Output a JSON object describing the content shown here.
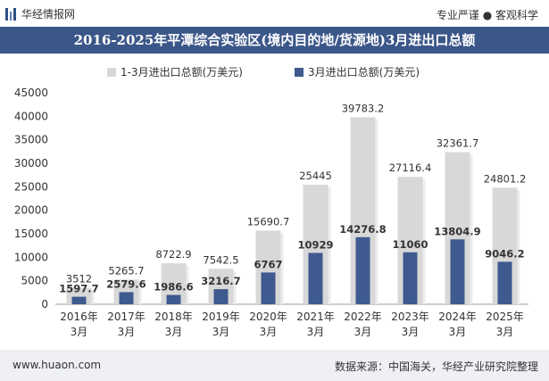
{
  "header": {
    "site_name": "华经情报网",
    "slogan": "专业严谨 ● 客观科学",
    "title": "2016-2025年平潭综合实验区(境内目的地/货源地)3月进出口总额"
  },
  "footer": {
    "url": "www.huaon.com",
    "source": "数据来源：中国海关，华经产业研究院整理"
  },
  "colors": {
    "bar_total": "#d8d8d8",
    "bar_march": "#3f5a8f",
    "title_bg": "#3b5789"
  },
  "chart_data": {
    "type": "bar",
    "categories": [
      "2016年\n3月",
      "2017年\n3月",
      "2018年\n3月",
      "2019年\n3月",
      "2020年\n3月",
      "2021年\n3月",
      "2022年\n3月",
      "2023年\n3月",
      "2024年\n3月",
      "2025年\n3月"
    ],
    "series": [
      {
        "name": "1-3月进出口总额(万美元)",
        "values": [
          3512,
          5265.7,
          8722.9,
          7542.5,
          15690.7,
          25445,
          39783.2,
          27116.4,
          32361.7,
          24801.2
        ]
      },
      {
        "name": "3月进出口总额(万美元)",
        "values": [
          1597.7,
          2579.6,
          1986.6,
          3216.7,
          6767,
          10929,
          14276.8,
          11060,
          13804.9,
          9046.2
        ]
      }
    ],
    "ylim": [
      0,
      45000
    ],
    "yticks": [
      0,
      5000,
      10000,
      15000,
      20000,
      25000,
      30000,
      35000,
      40000,
      45000
    ],
    "grid": false,
    "legend": "top-center"
  }
}
